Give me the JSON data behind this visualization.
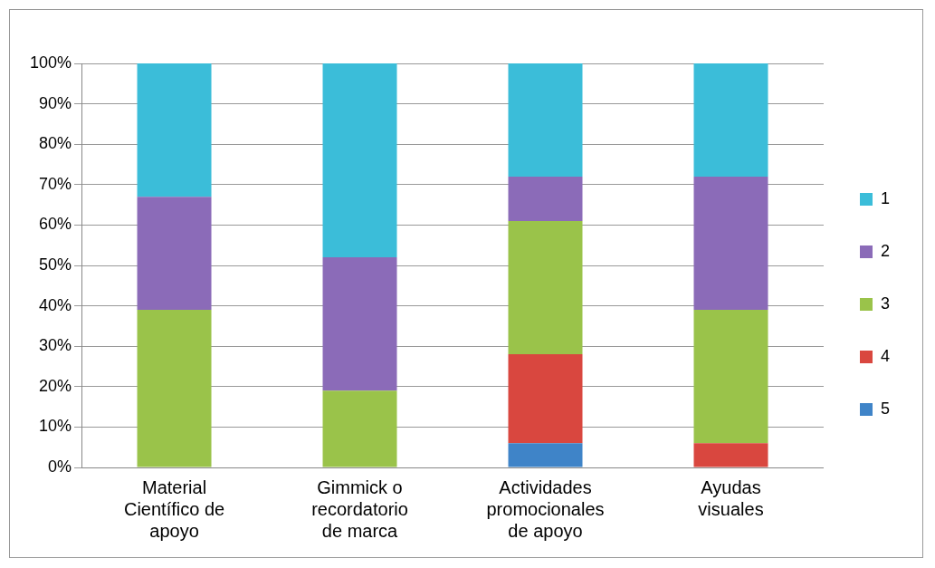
{
  "chart_data": {
    "type": "bar",
    "stacked": true,
    "categories": [
      "Material Científico de apoyo",
      "Gimmick o recordatorio de marca",
      "Actividades promocionales de apoyo",
      "Ayudas visuales"
    ],
    "series": [
      {
        "name": "5",
        "color": "#3f84c8",
        "values": [
          0,
          0,
          6,
          0
        ]
      },
      {
        "name": "4",
        "color": "#d9473f",
        "values": [
          0,
          0,
          22,
          6
        ]
      },
      {
        "name": "3",
        "color": "#9ac34a",
        "values": [
          39,
          19,
          33,
          33
        ]
      },
      {
        "name": "2",
        "color": "#8b6bb8",
        "values": [
          28,
          33,
          11,
          33
        ]
      },
      {
        "name": "1",
        "color": "#3bbdd9",
        "values": [
          33,
          48,
          28,
          28
        ]
      }
    ],
    "ylim": [
      0,
      100
    ],
    "yticks": [
      {
        "value": 0,
        "label": "0%"
      },
      {
        "value": 10,
        "label": "10%"
      },
      {
        "value": 20,
        "label": "20%"
      },
      {
        "value": 30,
        "label": "30%"
      },
      {
        "value": 40,
        "label": "40%"
      },
      {
        "value": 50,
        "label": "50%"
      },
      {
        "value": 60,
        "label": "60%"
      },
      {
        "value": 70,
        "label": "70%"
      },
      {
        "value": 80,
        "label": "80%"
      },
      {
        "value": 90,
        "label": "90%"
      },
      {
        "value": 100,
        "label": "100%"
      }
    ],
    "grid": "y",
    "legend": "right"
  }
}
